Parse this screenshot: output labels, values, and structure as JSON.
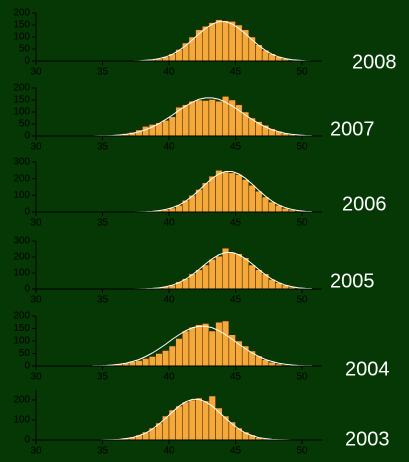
{
  "chart_data": [
    {
      "type": "histogram",
      "title": "2008",
      "color": "#f5a93b",
      "curve_color": "#ffffff",
      "bins": [
        34,
        34.5,
        35,
        35.5,
        36,
        36.5,
        37,
        37.5,
        38,
        38.5,
        39,
        39.5,
        40,
        40.5,
        41,
        41.5,
        42,
        42.5,
        43,
        43.5,
        44,
        44.5,
        45,
        45.5,
        46,
        46.5,
        47,
        47.5,
        48,
        48.5,
        49,
        49.5,
        50,
        50.5,
        51
      ],
      "values": [
        0,
        0,
        0,
        0,
        0,
        0,
        1,
        2,
        3,
        6,
        9,
        18,
        30,
        48,
        75,
        100,
        130,
        145,
        160,
        172,
        168,
        165,
        150,
        130,
        100,
        68,
        45,
        30,
        18,
        10,
        4,
        2,
        1,
        0
      ],
      "curve_x": [
        34.25,
        34.75,
        35.25,
        35.75,
        36.25,
        36.75,
        37.25,
        37.75,
        38.25,
        38.75,
        39.25,
        39.75,
        40.25,
        40.75,
        41.25,
        41.75,
        42.25,
        42.75,
        43.25,
        43.75,
        44.25,
        44.75,
        45.25,
        45.75,
        46.25,
        46.75,
        47.25,
        47.75,
        48.25,
        48.75,
        49.25,
        49.75,
        50.25,
        50.75
      ],
      "curve": [
        0,
        0,
        0,
        0,
        0,
        0,
        0,
        1,
        3,
        5,
        10,
        17,
        28,
        44,
        64,
        88,
        113,
        136,
        154,
        164,
        164,
        154,
        136,
        113,
        88,
        64,
        44,
        28,
        17,
        10,
        5,
        3,
        1,
        0
      ],
      "xlim": [
        30,
        51.5
      ],
      "ylim": [
        0,
        200
      ],
      "xticks": [
        30,
        35,
        40,
        45,
        50
      ],
      "yticks": [
        0,
        50,
        100,
        150,
        200
      ]
    },
    {
      "type": "histogram",
      "title": "2007",
      "color": "#f5a93b",
      "curve_color": "#ffffff",
      "bins": [
        34,
        34.5,
        35,
        35.5,
        36,
        36.5,
        37,
        37.5,
        38,
        38.5,
        39,
        39.5,
        40,
        40.5,
        41,
        41.5,
        42,
        42.5,
        43,
        43.5,
        44,
        44.5,
        45,
        45.5,
        46,
        46.5,
        47,
        47.5,
        48,
        48.5,
        49,
        49.5,
        50,
        50.5,
        51
      ],
      "values": [
        0,
        0,
        1,
        3,
        6,
        10,
        15,
        25,
        40,
        48,
        55,
        65,
        80,
        120,
        130,
        145,
        150,
        148,
        152,
        145,
        165,
        150,
        130,
        100,
        75,
        60,
        45,
        30,
        20,
        12,
        6,
        3,
        2,
        1
      ],
      "curve_x": [
        34.25,
        34.75,
        35.25,
        35.75,
        36.25,
        36.75,
        37.25,
        37.75,
        38.25,
        38.75,
        39.25,
        39.75,
        40.25,
        40.75,
        41.25,
        41.75,
        42.25,
        42.75,
        43.25,
        43.75,
        44.25,
        44.75,
        45.25,
        45.75,
        46.25,
        46.75,
        47.25,
        47.75,
        48.25,
        48.75,
        49.25,
        49.75,
        50.25,
        50.75
      ],
      "curve": [
        0,
        1,
        1,
        2,
        4,
        7,
        11,
        18,
        26,
        38,
        52,
        69,
        87,
        107,
        125,
        141,
        153,
        159,
        159,
        153,
        141,
        125,
        107,
        87,
        69,
        52,
        38,
        26,
        18,
        11,
        7,
        4,
        2,
        1
      ],
      "xlim": [
        30,
        51.5
      ],
      "ylim": [
        0,
        200
      ],
      "xticks": [
        30,
        35,
        40,
        45,
        50
      ],
      "yticks": [
        0,
        50,
        100,
        150,
        200
      ]
    },
    {
      "type": "histogram",
      "title": "2006",
      "color": "#f5a93b",
      "curve_color": "#ffffff",
      "bins": [
        34,
        34.5,
        35,
        35.5,
        36,
        36.5,
        37,
        37.5,
        38,
        38.5,
        39,
        39.5,
        40,
        40.5,
        41,
        41.5,
        42,
        42.5,
        43,
        43.5,
        44,
        44.5,
        45,
        45.5,
        46,
        46.5,
        47,
        47.5,
        48,
        48.5,
        49,
        49.5,
        50,
        50.5,
        51
      ],
      "values": [
        0,
        0,
        0,
        0,
        0,
        0,
        0,
        1,
        2,
        5,
        9,
        14,
        24,
        40,
        70,
        100,
        135,
        175,
        215,
        250,
        240,
        235,
        225,
        195,
        160,
        125,
        90,
        60,
        40,
        22,
        12,
        6,
        3,
        1
      ],
      "curve_x": [
        34.25,
        34.75,
        35.25,
        35.75,
        36.25,
        36.75,
        37.25,
        37.75,
        38.25,
        38.75,
        39.25,
        39.75,
        40.25,
        40.75,
        41.25,
        41.75,
        42.25,
        42.75,
        43.25,
        43.75,
        44.25,
        44.75,
        45.25,
        45.75,
        46.25,
        46.75,
        47.25,
        47.75,
        48.25,
        48.75,
        49.25,
        49.75,
        50.25,
        50.75
      ],
      "curve": [
        0,
        0,
        0,
        0,
        0,
        0,
        0,
        1,
        2,
        4,
        8,
        15,
        26,
        42,
        65,
        95,
        130,
        167,
        202,
        228,
        243,
        243,
        228,
        202,
        167,
        130,
        95,
        65,
        42,
        26,
        15,
        8,
        4,
        2
      ],
      "xlim": [
        30,
        51.5
      ],
      "ylim": [
        0,
        300
      ],
      "xticks": [
        30,
        35,
        40,
        45,
        50
      ],
      "yticks": [
        0,
        100,
        200,
        300
      ]
    },
    {
      "type": "histogram",
      "title": "2005",
      "color": "#f5a93b",
      "curve_color": "#ffffff",
      "bins": [
        34,
        34.5,
        35,
        35.5,
        36,
        36.5,
        37,
        37.5,
        38,
        38.5,
        39,
        39.5,
        40,
        40.5,
        41,
        41.5,
        42,
        42.5,
        43,
        43.5,
        44,
        44.5,
        45,
        45.5,
        46,
        46.5,
        47,
        47.5,
        48,
        48.5,
        49,
        49.5,
        50,
        50.5,
        51
      ],
      "values": [
        0,
        0,
        0,
        0,
        0,
        0,
        1,
        1,
        3,
        5,
        8,
        15,
        25,
        45,
        65,
        95,
        120,
        150,
        185,
        205,
        255,
        230,
        220,
        195,
        150,
        120,
        95,
        60,
        40,
        25,
        12,
        6,
        3,
        1
      ],
      "curve_x": [
        34.25,
        34.75,
        35.25,
        35.75,
        36.25,
        36.75,
        37.25,
        37.75,
        38.25,
        38.75,
        39.25,
        39.75,
        40.25,
        40.75,
        41.25,
        41.75,
        42.25,
        42.75,
        43.25,
        43.75,
        44.25,
        44.75,
        45.25,
        45.75,
        46.25,
        46.75,
        47.25,
        47.75,
        48.25,
        48.75,
        49.25,
        49.75,
        50.25,
        50.75
      ],
      "curve": [
        0,
        0,
        0,
        0,
        0,
        0,
        0,
        1,
        2,
        4,
        7,
        14,
        24,
        40,
        61,
        89,
        122,
        157,
        189,
        214,
        228,
        228,
        214,
        189,
        157,
        122,
        89,
        61,
        40,
        24,
        14,
        7,
        4,
        2
      ],
      "xlim": [
        30,
        51.5
      ],
      "ylim": [
        0,
        300
      ],
      "xticks": [
        30,
        35,
        40,
        45,
        50
      ],
      "yticks": [
        0,
        100,
        200,
        300
      ]
    },
    {
      "type": "histogram",
      "title": "2004",
      "color": "#f5a93b",
      "curve_color": "#ffffff",
      "bins": [
        34,
        34.5,
        35,
        35.5,
        36,
        36.5,
        37,
        37.5,
        38,
        38.5,
        39,
        39.5,
        40,
        40.5,
        41,
        41.5,
        42,
        42.5,
        43,
        43.5,
        44,
        44.5,
        45,
        45.5,
        46,
        46.5,
        47,
        47.5,
        48,
        48.5,
        49,
        49.5,
        50,
        50.5,
        51
      ],
      "values": [
        0,
        1,
        2,
        5,
        8,
        12,
        18,
        22,
        30,
        38,
        50,
        62,
        80,
        110,
        140,
        155,
        165,
        170,
        140,
        175,
        180,
        125,
        100,
        80,
        60,
        40,
        25,
        15,
        8,
        4,
        2,
        1,
        1,
        0
      ],
      "curve_x": [
        34.25,
        34.75,
        35.25,
        35.75,
        36.25,
        36.75,
        37.25,
        37.75,
        38.25,
        38.75,
        39.25,
        39.75,
        40.25,
        40.75,
        41.25,
        41.75,
        42.25,
        42.75,
        43.25,
        43.75,
        44.25,
        44.75,
        45.25,
        45.75,
        46.25,
        46.75,
        47.25,
        47.75,
        48.25,
        48.75,
        49.25,
        49.75,
        50.25,
        50.75
      ],
      "curve": [
        1,
        1,
        2,
        4,
        7,
        11,
        18,
        26,
        38,
        52,
        69,
        87,
        107,
        125,
        141,
        153,
        159,
        159,
        153,
        141,
        125,
        107,
        87,
        69,
        52,
        38,
        26,
        18,
        11,
        7,
        4,
        2,
        1,
        1
      ],
      "xlim": [
        30,
        51.5
      ],
      "ylim": [
        0,
        200
      ],
      "xticks": [
        30,
        35,
        40,
        45,
        50
      ],
      "yticks": [
        0,
        50,
        100,
        150,
        200
      ]
    },
    {
      "type": "histogram",
      "title": "2003",
      "color": "#f5a93b",
      "curve_color": "#ffffff",
      "bins": [
        34,
        34.5,
        35,
        35.5,
        36,
        36.5,
        37,
        37.5,
        38,
        38.5,
        39,
        39.5,
        40,
        40.5,
        41,
        41.5,
        42,
        42.5,
        43,
        43.5,
        44,
        44.5,
        45,
        45.5,
        46,
        46.5,
        47,
        47.5,
        48,
        48.5,
        49,
        49.5,
        50,
        50.5,
        51
      ],
      "values": [
        0,
        0,
        1,
        3,
        6,
        10,
        15,
        25,
        40,
        60,
        85,
        120,
        150,
        170,
        190,
        200,
        210,
        195,
        220,
        160,
        120,
        90,
        60,
        40,
        25,
        12,
        6,
        3,
        1,
        0,
        0,
        0,
        0,
        0
      ],
      "curve_x": [
        34.25,
        34.75,
        35.25,
        35.75,
        36.25,
        36.75,
        37.25,
        37.75,
        38.25,
        38.75,
        39.25,
        39.75,
        40.25,
        40.75,
        41.25,
        41.75,
        42.25,
        42.75,
        43.25,
        43.75,
        44.25,
        44.75,
        45.25,
        45.75,
        46.25,
        46.75,
        47.25,
        47.75,
        48.25,
        48.75,
        49.25,
        49.75,
        50.25,
        50.75
      ],
      "curve": [
        0,
        0,
        1,
        2,
        3,
        7,
        12,
        22,
        35,
        55,
        80,
        109,
        140,
        169,
        191,
        203,
        203,
        191,
        169,
        140,
        109,
        80,
        55,
        35,
        22,
        12,
        7,
        3,
        2,
        1,
        0,
        0,
        0,
        0
      ],
      "xlim": [
        30,
        51.5
      ],
      "ylim": [
        0,
        250
      ],
      "xticks": [
        30,
        35,
        40,
        45,
        50
      ],
      "yticks": [
        0,
        100,
        200
      ]
    }
  ]
}
